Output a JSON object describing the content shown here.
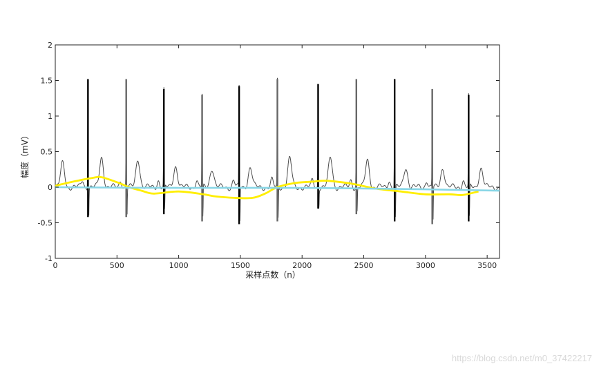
{
  "chart_data": {
    "type": "line",
    "xlabel": "采样点数（n）",
    "ylabel": "幅度（mV）",
    "xlim": [
      0,
      3600
    ],
    "ylim": [
      -1,
      2
    ],
    "xticks": [
      0,
      500,
      1000,
      1500,
      2000,
      2500,
      3000,
      3500
    ],
    "yticks": [
      -1,
      -0.5,
      0,
      0.5,
      1,
      1.5,
      2
    ],
    "ytick_labels": [
      "-1",
      "-0.5",
      "0",
      "0.5",
      "1",
      "1.5",
      "2"
    ],
    "grid": false,
    "beats": [
      {
        "x": 265,
        "peak": 1.52,
        "trough": -0.42
      },
      {
        "x": 575,
        "peak": 1.52,
        "trough": -0.42
      },
      {
        "x": 880,
        "peak": 1.38,
        "trough": -0.38
      },
      {
        "x": 1190,
        "peak": 1.3,
        "trough": -0.48
      },
      {
        "x": 1490,
        "peak": 1.42,
        "trough": -0.52
      },
      {
        "x": 1800,
        "peak": 1.52,
        "trough": -0.48
      },
      {
        "x": 2130,
        "peak": 1.45,
        "trough": -0.3
      },
      {
        "x": 2440,
        "peak": 1.52,
        "trough": -0.38
      },
      {
        "x": 2750,
        "peak": 1.52,
        "trough": -0.48
      },
      {
        "x": 3055,
        "peak": 1.38,
        "trough": -0.52
      },
      {
        "x": 3350,
        "peak": 1.3,
        "trough": -0.48
      }
    ],
    "t_waves": [
      {
        "x": 60,
        "y": 0.34
      },
      {
        "x": 375,
        "y": 0.42
      },
      {
        "x": 670,
        "y": 0.4
      },
      {
        "x": 975,
        "y": 0.3
      },
      {
        "x": 1270,
        "y": 0.27
      },
      {
        "x": 1580,
        "y": 0.28
      },
      {
        "x": 1900,
        "y": 0.4
      },
      {
        "x": 2230,
        "y": 0.42
      },
      {
        "x": 2530,
        "y": 0.38
      },
      {
        "x": 2840,
        "y": 0.28
      },
      {
        "x": 3140,
        "y": 0.27
      },
      {
        "x": 3450,
        "y": 0.27
      }
    ],
    "series": [
      {
        "color": "#ffee00",
        "x": [
          0,
          150,
          300,
          375,
          500,
          600,
          700,
          800,
          1000,
          1200,
          1300,
          1450,
          1600,
          1700,
          1800,
          1950,
          2100,
          2200,
          2400,
          2600,
          2800,
          3000,
          3200,
          3300,
          3430
        ],
        "y": [
          0.02,
          0.08,
          0.13,
          0.14,
          0.07,
          0.0,
          -0.05,
          -0.09,
          -0.06,
          -0.1,
          -0.13,
          -0.15,
          -0.15,
          -0.09,
          0.0,
          0.06,
          0.08,
          0.09,
          0.05,
          -0.02,
          -0.06,
          -0.1,
          -0.1,
          -0.11,
          -0.06
        ]
      },
      {
        "color": "#88d6e6",
        "x": [
          0,
          1000,
          2000,
          3000,
          3600
        ],
        "y": [
          0.0,
          -0.01,
          -0.01,
          -0.03,
          -0.05
        ]
      }
    ]
  },
  "watermark": "https://blog.csdn.net/m0_37422217"
}
